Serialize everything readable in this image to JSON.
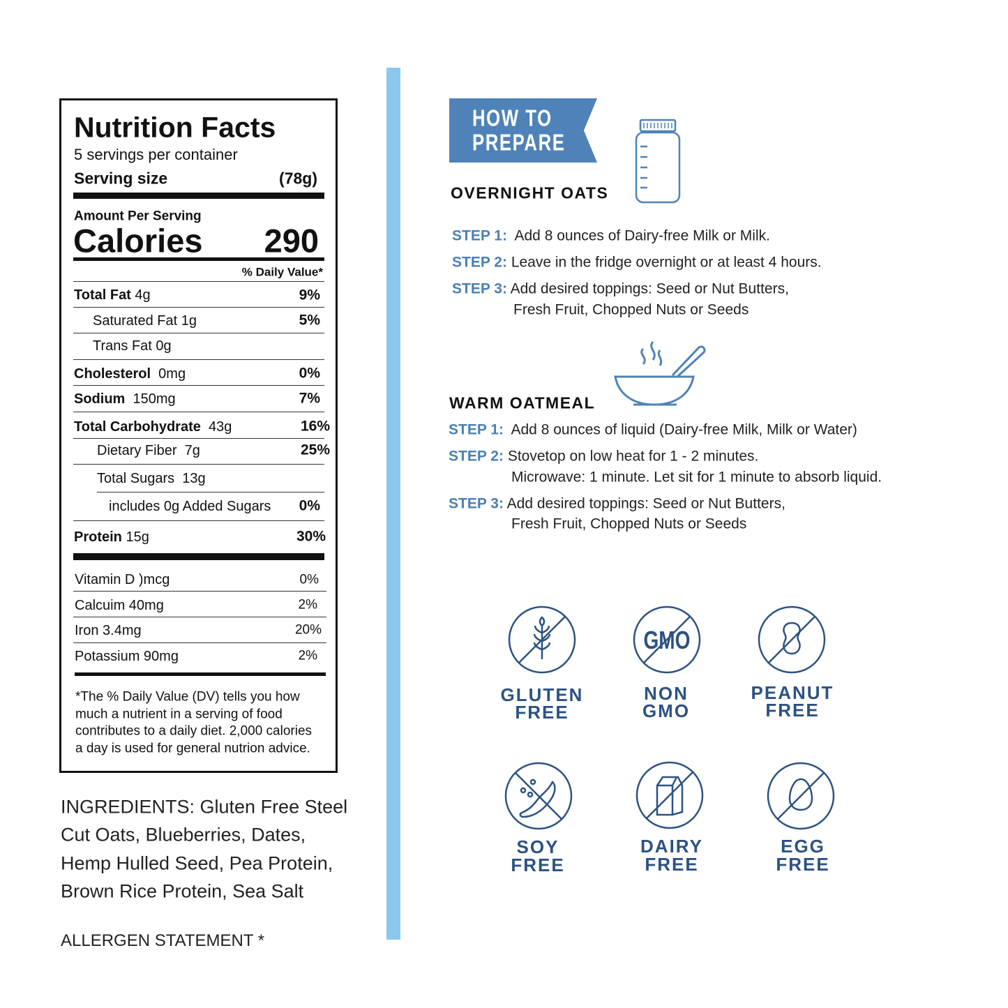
{
  "nutrition": {
    "title": "Nutrition Facts",
    "servings": "5 servings per container",
    "serving_size_label": "Serving size",
    "serving_size_value": "(78g)",
    "amount_per_serving": "Amount Per Serving",
    "calories_label": "Calories",
    "calories_value": "290",
    "daily_value_header": "% Daily Value*",
    "rows": [
      {
        "label": "Total Fat",
        "amount": "4g",
        "pct": "9%"
      },
      {
        "label": "Saturated Fat 1g",
        "amount": "",
        "pct": "5%"
      },
      {
        "label": "Trans Fat 0g",
        "amount": "",
        "pct": ""
      },
      {
        "label": "Cholesterol",
        "amount": "0mg",
        "pct": "0%"
      },
      {
        "label": "Sodium",
        "amount": "150mg",
        "pct": "7%"
      },
      {
        "label": "Total Carbohydrate",
        "amount": "43g",
        "pct": "16%"
      },
      {
        "label": "Dietary Fiber",
        "amount": "7g",
        "pct": "25%"
      },
      {
        "label": "Total Sugars",
        "amount": "13g",
        "pct": ""
      },
      {
        "label": "includes 0g Added Sugars",
        "amount": "",
        "pct": "0%"
      },
      {
        "label": "Protein",
        "amount": "15g",
        "pct": "30%"
      }
    ],
    "vitamins": [
      {
        "label": "Vitamin D )mcg",
        "pct": "0%"
      },
      {
        "label": "Calcuim 40mg",
        "pct": "2%"
      },
      {
        "label": "Iron 3.4mg",
        "pct": "20%"
      },
      {
        "label": "Potassium 90mg",
        "pct": "2%"
      }
    ],
    "footnote": [
      "*The % Daily Value (DV) tells you how",
      "much a nutrient in a serving of food",
      "contributes to a daily diet. 2,000 calories",
      "a day is used for general nutrion advice."
    ]
  },
  "ingredients": [
    "INGREDIENTS: Gluten Free Steel",
    "Cut Oats, Blueberries, Dates,",
    "Hemp Hulled Seed, Pea Protein,",
    "Brown Rice Protein, Sea Salt"
  ],
  "allergen_heading": "ALLERGEN STATEMENT *",
  "prepare": {
    "banner": [
      "HOW TO",
      "PREPARE"
    ],
    "overnight": {
      "title": "OVERNIGHT OATS",
      "steps": [
        {
          "label": "STEP 1:",
          "text": "Add 8 ounces of Dairy-free Milk or Milk."
        },
        {
          "label": "STEP 2:",
          "text": "Leave in the fridge overnight or at least 4 hours."
        },
        {
          "label": "STEP 3:",
          "text": "Add desired toppings: Seed or Nut Butters,",
          "text2": "Fresh Fruit, Chopped Nuts or Seeds"
        }
      ]
    },
    "warm": {
      "title": "WARM OATMEAL",
      "steps": [
        {
          "label": "STEP 1:",
          "text": "Add 8 ounces of liquid (Dairy-free Milk, Milk or Water)"
        },
        {
          "label": "STEP 2:",
          "text": "Stovetop on low heat for 1 - 2 minutes.",
          "text2": "Microwave: 1 minute. Let sit for 1 minute to absorb liquid."
        },
        {
          "label": "STEP 3:",
          "text": "Add desired toppings: Seed or Nut Butters,",
          "text2": "Fresh Fruit, Chopped Nuts or Seeds"
        }
      ]
    }
  },
  "badges": [
    {
      "icon": "wheat-icon",
      "line1": "GLUTEN",
      "line2": "FREE"
    },
    {
      "icon": "gmo-icon",
      "line1": "NON",
      "line2": "GMO",
      "glyph": "GMO"
    },
    {
      "icon": "peanut-icon",
      "line1": "PEANUT",
      "line2": "FREE"
    },
    {
      "icon": "soybean-icon",
      "line1": "SOY",
      "line2": "FREE"
    },
    {
      "icon": "milk-carton-icon",
      "line1": "DAIRY",
      "line2": "FREE"
    },
    {
      "icon": "egg-icon",
      "line1": "EGG",
      "line2": "FREE"
    }
  ],
  "colors": {
    "accent_bar": "#8cc8ee",
    "banner": "#4f82b8",
    "step_label": "#4a7fb5",
    "badge": "#2c5282"
  }
}
